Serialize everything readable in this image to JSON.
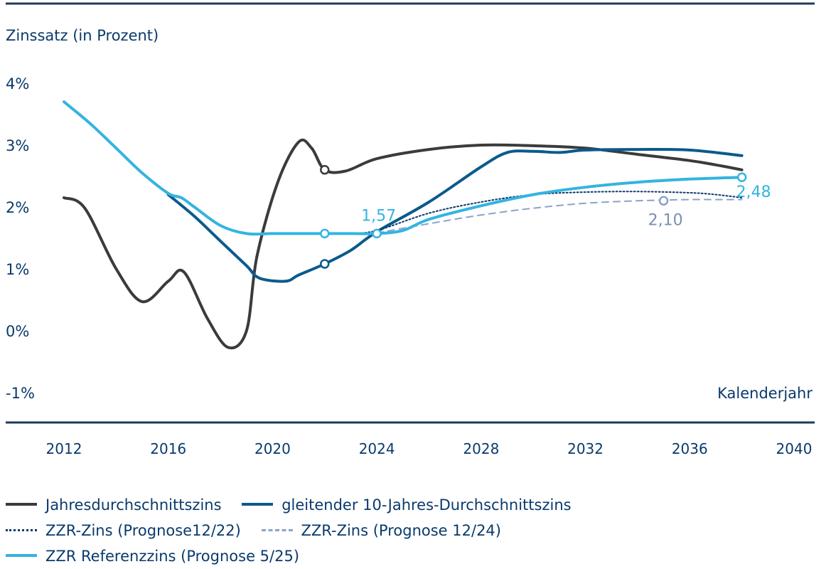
{
  "chart_data": {
    "type": "line",
    "ylabel": "Zinssatz (in Prozent)",
    "xlabel": "Kalenderjahr",
    "xlim": [
      2012,
      2040
    ],
    "ylim": [
      -1,
      4
    ],
    "x_ticks": [
      "2012",
      "2016",
      "2020",
      "2024",
      "2028",
      "2032",
      "2036",
      "2040"
    ],
    "y_ticks": [
      "4%",
      "3%",
      "2%",
      "1%",
      "0%",
      "-1%"
    ],
    "y_tick_values": [
      4,
      3,
      2,
      1,
      0,
      -1
    ],
    "legend_position": "bottom",
    "series": [
      {
        "name": "Jahresdurchschnittszins",
        "color": "#3b3b3b",
        "style": "solid",
        "width": 4,
        "points": [
          [
            2012,
            2.15
          ],
          [
            2012.8,
            1.98
          ],
          [
            2014,
            1.0
          ],
          [
            2015,
            0.47
          ],
          [
            2016,
            0.8
          ],
          [
            2016.6,
            0.95
          ],
          [
            2017.5,
            0.2
          ],
          [
            2018.3,
            -0.27
          ],
          [
            2019,
            0.0
          ],
          [
            2019.4,
            1.2
          ],
          [
            2020.2,
            2.4
          ],
          [
            2021,
            3.05
          ],
          [
            2021.5,
            2.95
          ],
          [
            2022,
            2.6
          ],
          [
            2022.8,
            2.58
          ],
          [
            2024,
            2.78
          ],
          [
            2026,
            2.93
          ],
          [
            2028,
            3.0
          ],
          [
            2030,
            2.99
          ],
          [
            2032,
            2.95
          ],
          [
            2034,
            2.85
          ],
          [
            2036,
            2.75
          ],
          [
            2037,
            2.68
          ],
          [
            2038,
            2.6
          ]
        ],
        "markers": [
          [
            2022,
            2.6
          ]
        ]
      },
      {
        "name": "gleitender 10-Jahres-Durchschnittszins",
        "color": "#0b5a8c",
        "style": "solid",
        "width": 4,
        "points": [
          [
            2016,
            2.2
          ],
          [
            2017,
            1.85
          ],
          [
            2018,
            1.45
          ],
          [
            2019,
            1.05
          ],
          [
            2019.5,
            0.85
          ],
          [
            2020.5,
            0.8
          ],
          [
            2021,
            0.9
          ],
          [
            2022,
            1.08
          ],
          [
            2023,
            1.3
          ],
          [
            2024,
            1.6
          ],
          [
            2026,
            2.08
          ],
          [
            2028,
            2.65
          ],
          [
            2029,
            2.88
          ],
          [
            2030,
            2.9
          ],
          [
            2031,
            2.88
          ],
          [
            2032,
            2.92
          ],
          [
            2034,
            2.93
          ],
          [
            2036,
            2.92
          ],
          [
            2038,
            2.83
          ]
        ],
        "markers": [
          [
            2022,
            1.08
          ]
        ]
      },
      {
        "name": "ZZR-Zins (Prognose12/22)",
        "color": "#0a3a6b",
        "style": "dotted",
        "width": 2,
        "points": [
          [
            2023,
            1.57
          ],
          [
            2024,
            1.62
          ],
          [
            2026,
            1.9
          ],
          [
            2028,
            2.08
          ],
          [
            2030,
            2.2
          ],
          [
            2032,
            2.24
          ],
          [
            2034,
            2.25
          ],
          [
            2036,
            2.23
          ],
          [
            2037,
            2.2
          ],
          [
            2038,
            2.15
          ]
        ]
      },
      {
        "name": "ZZR-Zins (Prognose 12/24)",
        "color": "#8aa3c8",
        "style": "dashed",
        "width": 2,
        "points": [
          [
            2024,
            1.58
          ],
          [
            2026,
            1.73
          ],
          [
            2028,
            1.87
          ],
          [
            2030,
            1.98
          ],
          [
            2032,
            2.06
          ],
          [
            2034,
            2.1
          ],
          [
            2036,
            2.12
          ],
          [
            2037,
            2.12
          ],
          [
            2038,
            2.12
          ]
        ],
        "markers": [
          [
            2035,
            2.1
          ]
        ]
      },
      {
        "name": "ZZR Referenzzins (Prognose 5/25)",
        "color": "#33b4e0",
        "style": "solid",
        "width": 4,
        "points": [
          [
            2012,
            3.7
          ],
          [
            2013,
            3.35
          ],
          [
            2014,
            2.95
          ],
          [
            2015,
            2.55
          ],
          [
            2016,
            2.22
          ],
          [
            2016.5,
            2.15
          ],
          [
            2017,
            2.0
          ],
          [
            2018,
            1.7
          ],
          [
            2019,
            1.57
          ],
          [
            2020,
            1.57
          ],
          [
            2021,
            1.57
          ],
          [
            2022,
            1.57
          ],
          [
            2023,
            1.57
          ],
          [
            2024,
            1.57
          ],
          [
            2025,
            1.62
          ],
          [
            2026,
            1.8
          ],
          [
            2028,
            2.02
          ],
          [
            2030,
            2.2
          ],
          [
            2032,
            2.32
          ],
          [
            2034,
            2.4
          ],
          [
            2036,
            2.45
          ],
          [
            2038,
            2.48
          ]
        ],
        "markers": [
          [
            2022,
            1.57
          ],
          [
            2024,
            1.57
          ],
          [
            2038,
            2.48
          ]
        ]
      }
    ],
    "annotations": [
      {
        "text": "1,57",
        "x": 2024,
        "y": 1.57,
        "color": "#33b4e0"
      },
      {
        "text": "2,10",
        "x": 2035,
        "y": 2.1,
        "color": "#7a90b0"
      },
      {
        "text": "2,48",
        "x": 2038,
        "y": 2.48,
        "color": "#33b4e0"
      }
    ]
  }
}
